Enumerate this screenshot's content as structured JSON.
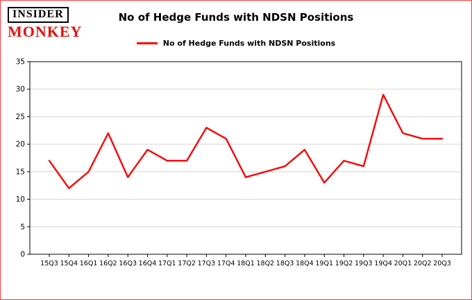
{
  "logo": {
    "line1": "INSIDER",
    "line2": "MONKEY",
    "color": "#e8100c"
  },
  "header": {
    "title": "No of Hedge Funds with NDSN Positions"
  },
  "legend": {
    "label": "No of Hedge Funds with NDSN Positions",
    "color": "#fe0000"
  },
  "chart_data": {
    "type": "line",
    "title": "No of Hedge Funds with NDSN Positions",
    "categories": [
      "15Q3",
      "15Q4",
      "16Q1",
      "16Q2",
      "16Q3",
      "16Q4",
      "17Q1",
      "17Q2",
      "17Q3",
      "17Q4",
      "18Q1",
      "18Q2",
      "18Q3",
      "18Q4",
      "19Q1",
      "19Q2",
      "19Q3",
      "19Q4",
      "20Q1",
      "20Q2",
      "20Q3"
    ],
    "values": [
      17,
      12,
      15,
      22,
      14,
      19,
      17,
      17,
      23,
      21,
      14,
      15,
      16,
      19,
      13,
      17,
      16,
      29,
      22,
      21,
      21
    ],
    "xlabel": "",
    "ylabel": "",
    "ylim": [
      0,
      35
    ],
    "yticks": [
      0,
      5,
      10,
      15,
      20,
      25,
      30,
      35
    ],
    "line_color": "#fe0000",
    "grid": true,
    "gridline_color": "#d3d3d3",
    "legend_position": "top"
  }
}
